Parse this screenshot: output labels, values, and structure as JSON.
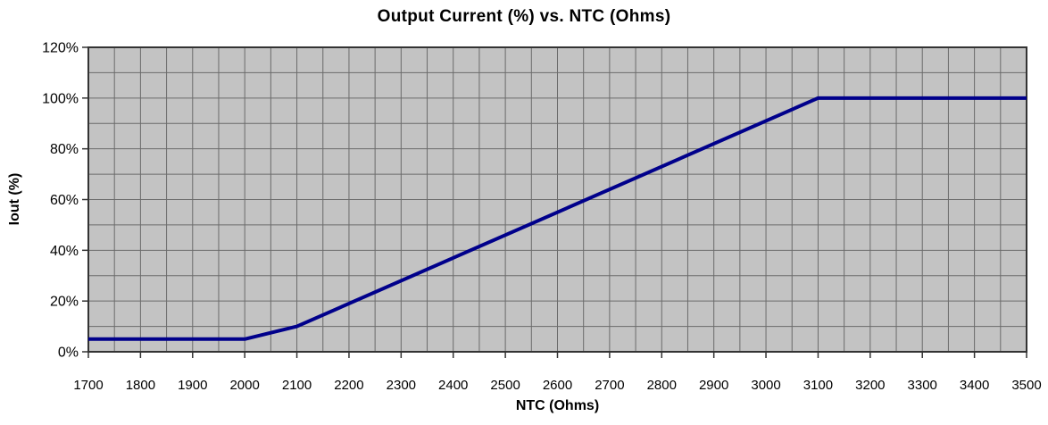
{
  "chart_data": {
    "type": "line",
    "title": "Output Current (%) vs. NTC (Ohms)",
    "xlabel": "NTC (Ohms)",
    "ylabel": "Iout (%)",
    "xlim": [
      1700,
      3500
    ],
    "ylim": [
      0,
      120
    ],
    "xtick_values": [
      1700,
      1800,
      1900,
      2000,
      2100,
      2200,
      2300,
      2400,
      2500,
      2600,
      2700,
      2800,
      2900,
      3000,
      3100,
      3200,
      3300,
      3400,
      3500
    ],
    "xtick_labels": [
      "1700",
      "1800",
      "1900",
      "2000",
      "2100",
      "2200",
      "2300",
      "2400",
      "2500",
      "2600",
      "2700",
      "2800",
      "2900",
      "3000",
      "3100",
      "3200",
      "3300",
      "3400",
      "3500"
    ],
    "ytick_values": [
      0,
      20,
      40,
      60,
      80,
      100,
      120
    ],
    "ytick_labels": [
      "0%",
      "20%",
      "40%",
      "60%",
      "80%",
      "100%",
      "120%"
    ],
    "grid": {
      "x_step": 50,
      "y_step": 10,
      "visible": true
    },
    "legend_position": "none",
    "series": [
      {
        "points": [
          [
            1700,
            5
          ],
          [
            2000,
            5
          ],
          [
            2100,
            10
          ],
          [
            3100,
            100
          ],
          [
            3500,
            100
          ]
        ],
        "color": "#00008b",
        "width": 4
      }
    ],
    "colors": {
      "line": "#00008b",
      "plot_background": "#c3c3c3",
      "grid": "#6b6b6b",
      "border": "#333333",
      "text": "#000000",
      "page_background": "#ffffff"
    }
  }
}
